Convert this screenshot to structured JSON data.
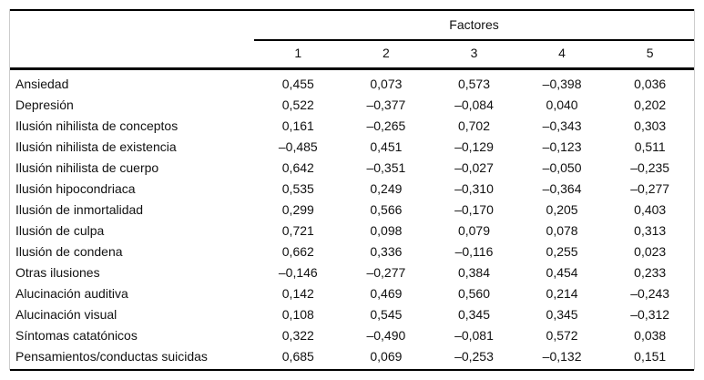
{
  "table": {
    "group_header": "Factores",
    "columns": [
      "1",
      "2",
      "3",
      "4",
      "5"
    ],
    "rows": [
      {
        "label": "Ansiedad",
        "values": [
          "0,455",
          "0,073",
          "0,573",
          "–0,398",
          "0,036"
        ]
      },
      {
        "label": "Depresión",
        "values": [
          "0,522",
          "–0,377",
          "–0,084",
          "0,040",
          "0,202"
        ]
      },
      {
        "label": "Ilusión nihilista de conceptos",
        "values": [
          "0,161",
          "–0,265",
          "0,702",
          "–0,343",
          "0,303"
        ]
      },
      {
        "label": "Ilusión nihilista de existencia",
        "values": [
          "–0,485",
          "0,451",
          "–0,129",
          "–0,123",
          "0,511"
        ]
      },
      {
        "label": "Ilusión nihilista de cuerpo",
        "values": [
          "0,642",
          "–0,351",
          "–0,027",
          "–0,050",
          "–0,235"
        ]
      },
      {
        "label": "Ilusión hipocondriaca",
        "values": [
          "0,535",
          "0,249",
          "–0,310",
          "–0,364",
          "–0,277"
        ]
      },
      {
        "label": "Ilusión de inmortalidad",
        "values": [
          "0,299",
          "0,566",
          "–0,170",
          "0,205",
          "0,403"
        ]
      },
      {
        "label": "Ilusión de culpa",
        "values": [
          "0,721",
          "0,098",
          "0,079",
          "0,078",
          "0,313"
        ]
      },
      {
        "label": "Ilusión de condena",
        "values": [
          "0,662",
          "0,336",
          "–0,116",
          "0,255",
          "0,023"
        ]
      },
      {
        "label": "Otras ilusiones",
        "values": [
          "–0,146",
          "–0,277",
          "0,384",
          "0,454",
          "0,233"
        ]
      },
      {
        "label": "Alucinación auditiva",
        "values": [
          "0,142",
          "0,469",
          "0,560",
          "0,214",
          "–0,243"
        ]
      },
      {
        "label": "Alucinación visual",
        "values": [
          "0,108",
          "0,545",
          "0,345",
          "0,345",
          "–0,312"
        ]
      },
      {
        "label": "Síntomas catatónicos",
        "values": [
          "0,322",
          "–0,490",
          "–0,081",
          "0,572",
          "0,038"
        ]
      },
      {
        "label": "Pensamientos/conductas suicidas",
        "values": [
          "0,685",
          "0,069",
          "–0,253",
          "–0,132",
          "0,151"
        ]
      }
    ]
  },
  "chart_data": {
    "type": "table",
    "title": "Factores",
    "columns": [
      "1",
      "2",
      "3",
      "4",
      "5"
    ],
    "row_labels": [
      "Ansiedad",
      "Depresión",
      "Ilusión nihilista de conceptos",
      "Ilusión nihilista de existencia",
      "Ilusión nihilista de cuerpo",
      "Ilusión hipocondriaca",
      "Ilusión de inmortalidad",
      "Ilusión de culpa",
      "Ilusión de condena",
      "Otras ilusiones",
      "Alucinación auditiva",
      "Alucinación visual",
      "Síntomas catatónicos",
      "Pensamientos/conductas suicidas"
    ],
    "values": [
      [
        0.455,
        0.073,
        0.573,
        -0.398,
        0.036
      ],
      [
        0.522,
        -0.377,
        -0.084,
        0.04,
        0.202
      ],
      [
        0.161,
        -0.265,
        0.702,
        -0.343,
        0.303
      ],
      [
        -0.485,
        0.451,
        -0.129,
        -0.123,
        0.511
      ],
      [
        0.642,
        -0.351,
        -0.027,
        -0.05,
        -0.235
      ],
      [
        0.535,
        0.249,
        -0.31,
        -0.364,
        -0.277
      ],
      [
        0.299,
        0.566,
        -0.17,
        0.205,
        0.403
      ],
      [
        0.721,
        0.098,
        0.079,
        0.078,
        0.313
      ],
      [
        0.662,
        0.336,
        -0.116,
        0.255,
        0.023
      ],
      [
        -0.146,
        -0.277,
        0.384,
        0.454,
        0.233
      ],
      [
        0.142,
        0.469,
        0.56,
        0.214,
        -0.243
      ],
      [
        0.108,
        0.545,
        0.345,
        0.345,
        -0.312
      ],
      [
        0.322,
        -0.49,
        -0.081,
        0.572,
        0.038
      ],
      [
        0.685,
        0.069,
        -0.253,
        -0.132,
        0.151
      ]
    ],
    "decimal_separator": ","
  },
  "colors": {
    "text": "#111111",
    "rule": "#000000",
    "frame_border": "#cccccc",
    "background": "#ffffff"
  }
}
